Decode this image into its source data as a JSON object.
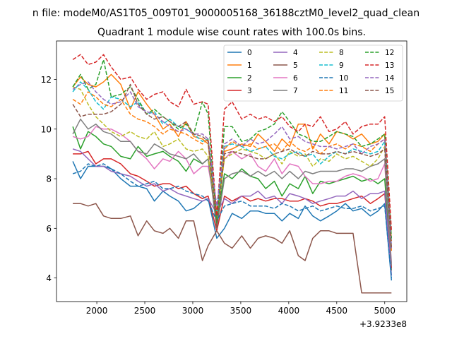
{
  "figure": {
    "suptitle": "n file: modeM0/AS1T05_009T01_9000005168_36188cztM0_level2_quad_clean",
    "title": "Quadrant 1 module wise count rates with 100.0s bins."
  },
  "chart_data": {
    "type": "line",
    "title": "Quadrant 1 module wise count rates with 100.0s bins.",
    "xlabel": "",
    "ylabel": "",
    "x_offset_label": "+3.9233e8",
    "xlim": [
      1580,
      5230
    ],
    "ylim": [
      3.05,
      13.55
    ],
    "grid": false,
    "legend_position": "top-right",
    "xticks": [
      2000,
      2500,
      3000,
      3500,
      4000,
      4500,
      5000
    ],
    "xtick_labels": [
      "2000",
      "2500",
      "3000",
      "3500",
      "4000",
      "4500",
      "5000"
    ],
    "yticks": [
      4,
      6,
      8,
      10,
      12
    ],
    "ytick_labels": [
      "4",
      "6",
      "8",
      "10",
      "12"
    ],
    "x": [
      1750,
      1830,
      1910,
      1990,
      2070,
      2150,
      2250,
      2350,
      2430,
      2520,
      2600,
      2690,
      2760,
      2850,
      2930,
      3010,
      3100,
      3160,
      3250,
      3330,
      3410,
      3510,
      3600,
      3680,
      3760,
      3850,
      3930,
      4010,
      4100,
      4170,
      4250,
      4330,
      4420,
      4500,
      4590,
      4670,
      4760,
      4850,
      4930,
      5000,
      5070
    ],
    "series": [
      {
        "name": "0",
        "color": "#1f77b4",
        "dash": "solid",
        "values": [
          8.7,
          8.0,
          8.5,
          8.5,
          8.5,
          8.4,
          8.0,
          7.7,
          7.7,
          7.6,
          7.1,
          7.5,
          7.3,
          7.1,
          6.7,
          6.8,
          7.1,
          7.2,
          5.6,
          6.0,
          6.6,
          6.4,
          6.7,
          6.7,
          6.6,
          6.6,
          6.3,
          6.6,
          6.4,
          6.9,
          6.5,
          6.3,
          6.5,
          6.7,
          7.0,
          6.7,
          6.8,
          6.5,
          6.7,
          7.0,
          3.9
        ]
      },
      {
        "name": "1",
        "color": "#ff7f0e",
        "dash": "solid",
        "values": [
          11.7,
          12.1,
          11.8,
          11.7,
          11.9,
          12.2,
          11.8,
          10.8,
          11.5,
          11.0,
          10.6,
          10.0,
          10.2,
          9.7,
          10.3,
          9.7,
          9.6,
          9.4,
          6.3,
          9.1,
          9.2,
          9.4,
          9.3,
          9.8,
          9.5,
          9.1,
          9.6,
          9.3,
          10.2,
          10.2,
          9.2,
          9.8,
          9.4,
          9.9,
          9.8,
          9.6,
          9.8,
          9.4,
          9.5,
          9.8,
          5.1
        ]
      },
      {
        "name": "2",
        "color": "#2ca02c",
        "dash": "solid",
        "values": [
          10.1,
          9.2,
          9.9,
          9.7,
          9.4,
          9.3,
          8.9,
          8.8,
          9.3,
          8.9,
          9.0,
          9.1,
          8.9,
          8.7,
          8.3,
          8.8,
          8.6,
          8.8,
          6.3,
          8.2,
          8.0,
          8.4,
          8.1,
          8.0,
          7.6,
          7.9,
          7.3,
          7.8,
          7.6,
          8.1,
          7.4,
          7.9,
          7.8,
          7.9,
          8.0,
          8.1,
          7.9,
          8.0,
          7.8,
          8.0,
          4.3
        ]
      },
      {
        "name": "3",
        "color": "#d62728",
        "dash": "solid",
        "values": [
          9.0,
          9.0,
          9.1,
          8.6,
          8.8,
          8.8,
          8.6,
          8.2,
          8.1,
          7.9,
          7.7,
          7.8,
          7.8,
          7.6,
          7.7,
          7.4,
          7.2,
          7.3,
          5.9,
          7.3,
          7.1,
          7.3,
          7.1,
          7.2,
          7.1,
          7.2,
          7.2,
          7.1,
          7.1,
          7.2,
          7.1,
          6.9,
          7.0,
          7.0,
          7.1,
          7.2,
          7.3,
          7.0,
          7.2,
          7.4,
          4.4
        ]
      },
      {
        "name": "4",
        "color": "#9467bd",
        "dash": "solid",
        "values": [
          9.2,
          9.1,
          8.8,
          8.5,
          8.5,
          8.3,
          8.2,
          8.1,
          7.9,
          7.7,
          7.8,
          7.5,
          7.6,
          7.4,
          7.3,
          7.2,
          7.1,
          7.2,
          6.6,
          7.2,
          7.0,
          7.3,
          7.3,
          7.5,
          7.2,
          7.3,
          7.0,
          7.4,
          7.3,
          7.2,
          7.0,
          7.1,
          7.2,
          7.3,
          7.3,
          7.5,
          7.2,
          7.4,
          7.4,
          7.5,
          4.1
        ]
      },
      {
        "name": "5",
        "color": "#8c564b",
        "dash": "solid",
        "values": [
          7.0,
          7.0,
          6.9,
          7.0,
          6.5,
          6.4,
          6.4,
          6.5,
          5.7,
          6.3,
          5.9,
          5.8,
          6.0,
          5.6,
          6.3,
          6.3,
          4.7,
          5.3,
          5.9,
          5.4,
          5.2,
          5.7,
          5.2,
          5.6,
          5.7,
          5.6,
          5.4,
          5.9,
          4.9,
          4.7,
          5.6,
          5.9,
          5.9,
          5.8,
          5.8,
          5.8,
          3.4,
          3.4,
          3.4,
          3.4,
          3.4
        ]
      },
      {
        "name": "6",
        "color": "#e377c2",
        "dash": "solid",
        "values": [
          9.7,
          9.6,
          9.7,
          10.1,
          10.0,
          10.0,
          9.8,
          9.5,
          9.1,
          8.8,
          8.4,
          8.8,
          8.7,
          9.1,
          8.8,
          8.2,
          8.5,
          8.5,
          6.6,
          8.8,
          9.1,
          8.8,
          9.0,
          8.5,
          8.3,
          8.8,
          8.2,
          8.6,
          8.5,
          8.1,
          7.8,
          7.8,
          7.9,
          7.9,
          8.1,
          8.2,
          8.1,
          7.9,
          8.0,
          8.6,
          4.6
        ]
      },
      {
        "name": "7",
        "color": "#7f7f7f",
        "dash": "solid",
        "values": [
          9.8,
          10.4,
          10.0,
          10.2,
          9.9,
          9.8,
          9.5,
          9.5,
          9.1,
          9.0,
          9.4,
          9.2,
          9.0,
          8.9,
          8.8,
          9.0,
          8.6,
          8.8,
          6.0,
          8.0,
          8.2,
          8.3,
          8.1,
          8.3,
          8.1,
          8.3,
          8.0,
          8.3,
          8.0,
          8.3,
          8.2,
          8.3,
          8.3,
          8.3,
          8.4,
          8.4,
          8.3,
          8.5,
          8.6,
          8.8,
          4.5
        ]
      },
      {
        "name": "8",
        "color": "#bcbd22",
        "dash": "dashed",
        "values": [
          11.7,
          11.6,
          11.0,
          10.5,
          10.2,
          9.9,
          9.7,
          9.9,
          9.7,
          9.6,
          9.9,
          9.3,
          9.4,
          9.6,
          9.2,
          9.1,
          9.2,
          8.9,
          6.4,
          8.8,
          9.0,
          9.2,
          9.1,
          9.0,
          8.8,
          9.0,
          8.6,
          9.1,
          8.9,
          9.0,
          8.5,
          8.8,
          8.7,
          9.0,
          8.8,
          8.9,
          8.7,
          8.5,
          8.8,
          9.3,
          5.2
        ]
      },
      {
        "name": "9",
        "color": "#17becf",
        "dash": "dashed",
        "values": [
          11.5,
          11.9,
          11.6,
          11.1,
          10.8,
          11.3,
          11.2,
          10.9,
          11.1,
          10.6,
          10.7,
          10.2,
          10.4,
          10.1,
          10.0,
          9.8,
          9.5,
          9.6,
          6.5,
          9.3,
          9.4,
          9.3,
          9.1,
          9.2,
          9.3,
          8.9,
          8.8,
          9.0,
          9.1,
          8.9,
          9.0,
          8.6,
          8.9,
          9.1,
          9.0,
          9.2,
          9.1,
          9.0,
          9.1,
          9.5,
          5.4
        ]
      },
      {
        "name": "10",
        "color": "#1f77b4",
        "dash": "dashed",
        "values": [
          8.2,
          8.3,
          8.6,
          8.5,
          8.6,
          8.4,
          8.2,
          7.9,
          7.7,
          7.8,
          7.9,
          7.6,
          7.6,
          7.7,
          7.5,
          7.4,
          7.3,
          7.1,
          6.3,
          6.9,
          7.0,
          7.1,
          6.9,
          6.9,
          6.9,
          6.8,
          7.0,
          6.9,
          6.7,
          6.8,
          6.9,
          6.7,
          6.8,
          6.9,
          6.8,
          6.8,
          6.9,
          6.7,
          6.8,
          6.9,
          4.0
        ]
      },
      {
        "name": "11",
        "color": "#ff7f0e",
        "dash": "dashed",
        "values": [
          11.2,
          11.0,
          11.5,
          11.3,
          11.0,
          10.9,
          11.2,
          10.6,
          10.4,
          10.3,
          10.1,
          9.8,
          10.0,
          9.9,
          9.8,
          9.6,
          9.4,
          9.6,
          6.6,
          9.2,
          9.5,
          9.3,
          9.4,
          9.2,
          9.3,
          9.4,
          9.1,
          9.5,
          9.2,
          9.1,
          9.3,
          9.0,
          9.3,
          9.4,
          9.2,
          9.4,
          9.3,
          9.1,
          9.4,
          9.6,
          5.5
        ]
      },
      {
        "name": "12",
        "color": "#2ca02c",
        "dash": "dashed",
        "values": [
          11.7,
          12.2,
          11.6,
          11.8,
          12.8,
          11.3,
          11.4,
          11.7,
          11.2,
          10.6,
          10.8,
          10.5,
          10.3,
          10.0,
          10.2,
          9.8,
          11.1,
          10.6,
          6.2,
          10.1,
          10.1,
          9.5,
          9.6,
          9.9,
          10.0,
          10.2,
          10.7,
          10.3,
          9.8,
          9.7,
          9.5,
          9.5,
          9.7,
          9.9,
          9.8,
          9.7,
          9.3,
          9.4,
          9.6,
          9.8,
          5.6
        ]
      },
      {
        "name": "13",
        "color": "#d62728",
        "dash": "dashed",
        "values": [
          12.8,
          13.0,
          12.6,
          12.7,
          13.0,
          12.5,
          12.0,
          12.1,
          11.6,
          11.2,
          11.4,
          11.5,
          11.1,
          10.9,
          11.6,
          11.0,
          11.1,
          11.0,
          6.5,
          10.8,
          11.1,
          10.4,
          10.6,
          10.4,
          10.5,
          10.3,
          10.5,
          10.1,
          9.9,
          10.2,
          10.1,
          10.5,
          9.9,
          10.0,
          10.3,
          9.8,
          10.1,
          10.2,
          10.2,
          10.5,
          5.9
        ]
      },
      {
        "name": "14",
        "color": "#9467bd",
        "dash": "dashed",
        "values": [
          11.6,
          11.8,
          11.9,
          11.5,
          11.2,
          11.0,
          11.1,
          11.5,
          10.9,
          10.7,
          10.6,
          10.3,
          10.1,
          9.9,
          10.0,
          9.8,
          9.8,
          9.6,
          6.9,
          9.4,
          9.6,
          9.3,
          9.6,
          9.4,
          9.5,
          9.8,
          10.1,
          9.6,
          9.7,
          9.5,
          9.4,
          9.3,
          9.3,
          9.2,
          9.3,
          9.4,
          9.0,
          9.3,
          9.4,
          9.6,
          5.2
        ]
      },
      {
        "name": "15",
        "color": "#8c564b",
        "dash": "dashed",
        "values": [
          11.0,
          10.5,
          10.6,
          10.6,
          10.6,
          10.7,
          11.0,
          11.8,
          11.0,
          10.6,
          10.4,
          10.5,
          10.3,
          10.1,
          10.3,
          9.8,
          9.7,
          9.5,
          6.0,
          9.0,
          9.1,
          9.0,
          8.9,
          8.8,
          8.8,
          9.0,
          9.1,
          9.2,
          9.0,
          8.9,
          9.1,
          9.0,
          9.0,
          9.1,
          9.0,
          9.1,
          9.0,
          8.9,
          9.0,
          9.2,
          5.2
        ]
      }
    ]
  }
}
